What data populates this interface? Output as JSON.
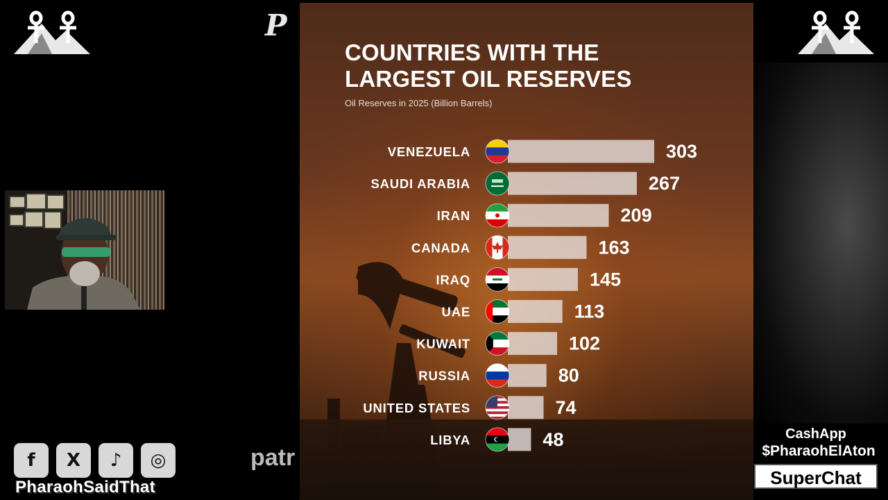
{
  "overlay": {
    "channel_handle": "PharaohSaidThat",
    "patreon_text": "patr",
    "cashapp_label": "CashApp",
    "cashapp_handle": "$PharaohElAton",
    "superchat_label": "SuperChat",
    "social_icons": [
      "facebook-icon",
      "x-icon",
      "tiktok-icon",
      "instagram-icon"
    ],
    "logo_letter": "P"
  },
  "chart_data": {
    "type": "bar",
    "title": "COUNTRIES WITH THE LARGEST OIL RESERVES",
    "subtitle": "Oil Reserves in 2025 (Billion Barrels)",
    "categories": [
      "VENEZUELA",
      "SAUDI ARABIA",
      "IRAN",
      "CANADA",
      "IRAQ",
      "UAE",
      "KUWAIT",
      "RUSSIA",
      "UNITED STATES",
      "LIBYA"
    ],
    "values": [
      303,
      267,
      209,
      163,
      145,
      113,
      102,
      80,
      74,
      48
    ],
    "flags": [
      "venezuela",
      "saudi-arabia",
      "iran",
      "canada",
      "iraq",
      "uae",
      "kuwait",
      "russia",
      "united-states",
      "libya"
    ],
    "orientation": "horizontal",
    "bar_color": "#e4dcd8",
    "xlim": [
      0,
      303
    ],
    "grid": false,
    "legend": "none"
  }
}
